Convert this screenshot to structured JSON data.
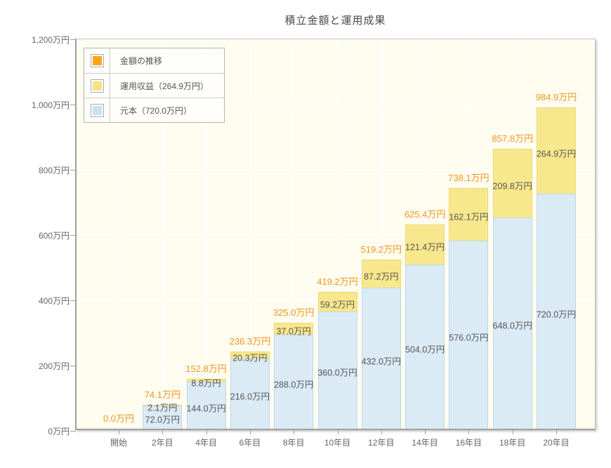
{
  "title": "積立金額と運用成果",
  "colors": {
    "accent_orange": "#F9A51B",
    "total_label_orange": "#F2971B",
    "return_yellow": "#F8E88D",
    "return_swatch_yellow": "#F7E181",
    "principal_blue": "#DBEBF5",
    "principal_swatch_blue": "#C7E2F0",
    "plot_background": "#FFFCF0",
    "grid_white": "#FFFFFF",
    "axis_gray": "#9F9F9F",
    "text_dark": "#555555"
  },
  "chart_data": {
    "type": "bar",
    "stacked": true,
    "title": "積立金額と運用成果",
    "xlabel": "",
    "ylabel": "",
    "ylim": [
      0,
      1200
    ],
    "grid": true,
    "legend_position": "top-left",
    "categories": [
      "開始",
      "2年目",
      "4年目",
      "6年目",
      "8年目",
      "10年目",
      "12年目",
      "14年目",
      "16年目",
      "18年目",
      "20年目"
    ],
    "ytick_values": [
      0,
      200,
      400,
      600,
      800,
      1000,
      1200
    ],
    "ytick_labels": [
      "0万円",
      "200万円",
      "400万円",
      "600万円",
      "800万円",
      "1,000万円",
      "1,200万円"
    ],
    "series": [
      {
        "name": "元本",
        "color": "#DBEBF5",
        "values": [
          0,
          72.0,
          144.0,
          216.0,
          288.0,
          360.0,
          432.0,
          504.0,
          576.0,
          648.0,
          720.0
        ],
        "labels": [
          "",
          "72.0万円",
          "144.0万円",
          "216.0万円",
          "288.0万円",
          "360.0万円",
          "432.0万円",
          "504.0万円",
          "576.0万円",
          "648.0万円",
          "720.0万円"
        ]
      },
      {
        "name": "運用収益",
        "color": "#F8E88D",
        "values": [
          0,
          2.1,
          8.8,
          20.3,
          37.0,
          59.2,
          87.2,
          121.4,
          162.1,
          209.8,
          264.9
        ],
        "labels": [
          "",
          "2.1万円",
          "8.8万円",
          "20.3万円",
          "37.0万円",
          "59.2万円",
          "87.2万円",
          "121.4万円",
          "162.1万円",
          "209.8万円",
          "264.9万円"
        ]
      }
    ],
    "totals": {
      "values": [
        0.0,
        74.1,
        152.8,
        236.3,
        325.0,
        419.2,
        519.2,
        625.4,
        738.1,
        857.8,
        984.9
      ],
      "labels": [
        "0.0万円",
        "74.1万円",
        "152.8万円",
        "236.3万円",
        "325.0万円",
        "419.2万円",
        "519.2万円",
        "625.4万円",
        "738.1万円",
        "857.8万円",
        "984.9万円"
      ]
    },
    "legend": [
      {
        "label": "金額の推移",
        "color": "#F9A51B"
      },
      {
        "label": "運用収益（264.9万円）",
        "color": "#F7E181"
      },
      {
        "label": "元本（720.0万円）",
        "color": "#C7E2F0"
      }
    ]
  }
}
